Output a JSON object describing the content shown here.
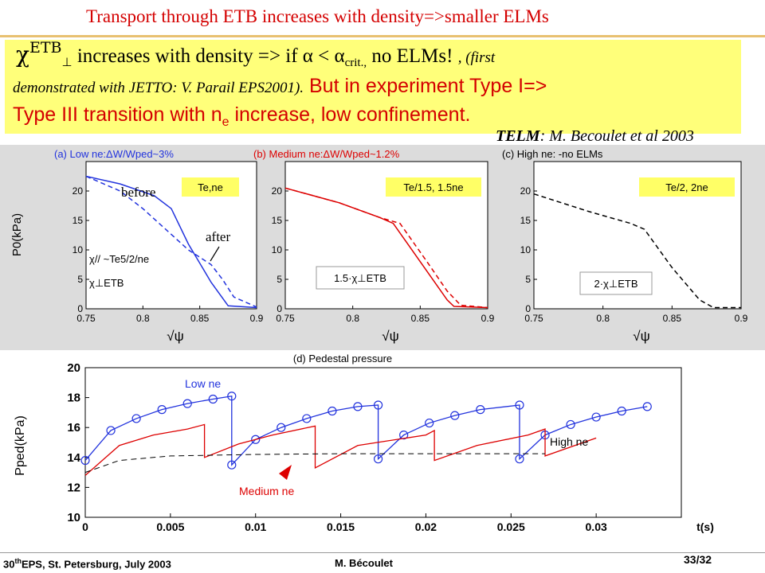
{
  "title": "Transport through ETB increases with density=>smaller ELMs",
  "callout": {
    "chi_symbol": "χ",
    "chi_sup": "ETB",
    "chi_sub": "⊥",
    "line1_text": " increases with density => if α < α",
    "alpha_sub": "crit.,",
    "line1_tail": " no ELMs! ",
    "line1_italic": ", (first",
    "line2_italic": "demonstrated with JETTO: V. Parail EPS2001).",
    "line2_red": " But in experiment Type I=>",
    "line3_a": "Type III transition with n",
    "line3_sub": "e",
    "line3_b": " increase, low confinement."
  },
  "reference": {
    "bold": "TELM",
    "rest": ": M. Becoulet et al 2003"
  },
  "panels": [
    {
      "title_main": "(a) Low n",
      "title_rest": "e:ΔW/W",
      "title_sub": "ped",
      "title_end": "~3%",
      "box_label": "Te,ne",
      "color": "#2233dd"
    },
    {
      "title_main": "(b) Medium n",
      "title_rest": "e:ΔW/W",
      "title_sub": "ped",
      "title_end": "~1.2%",
      "box_label": "Te/1.5, 1.5ne",
      "color": "#dd0000"
    },
    {
      "title_main": "(c) High n",
      "title_rest": "e: -no ELMs",
      "title_sub": "",
      "title_end": "",
      "box_label": "Te/2, 2ne",
      "color": "#000000"
    }
  ],
  "panel_annotations": {
    "before": "before",
    "after": "after",
    "chi_par": "χ// ~Te5/2/ne",
    "chi_perp_etb": "χ⊥ETB",
    "b_label": "1.5·χ⊥ETB",
    "c_label": "2·χ⊥ETB"
  },
  "upper_ylabel": "P0(kPa)",
  "upper_xlabel": "√ψ",
  "upper_xticks": [
    "0.75",
    "0.8",
    "0.85",
    "0.9"
  ],
  "upper_yticks": [
    "0",
    "5",
    "10",
    "15",
    "20"
  ],
  "lower": {
    "title": "(d) Pedestal pressure",
    "ylabel": "Pped(kPa)",
    "xlabel": "t(s)",
    "xticks": [
      "0",
      "0.005",
      "0.01",
      "0.015",
      "0.02",
      "0.025",
      "0.03"
    ],
    "yticks": [
      "10",
      "12",
      "14",
      "16",
      "18",
      "20"
    ],
    "low_label": "Low ne",
    "high_label": "High ne",
    "medium_label": "Medium ne"
  },
  "footer": {
    "left_a": "30",
    "left_sup": "th",
    "left_b": "EPS, St. Petersburg, July 2003",
    "author": "M. Bécoulet",
    "page": "33/32"
  },
  "chart_data": [
    {
      "type": "line",
      "title": "(a) Low ne:ΔW/Wped~3%",
      "xlabel": "√ψ",
      "ylabel": "P0(kPa)",
      "xlim": [
        0.75,
        0.9
      ],
      "ylim": [
        0,
        25
      ],
      "series": [
        {
          "name": "before",
          "x": [
            0.75,
            0.78,
            0.81,
            0.825,
            0.84,
            0.86,
            0.875,
            0.9
          ],
          "y": [
            22.5,
            21.2,
            19.2,
            17.0,
            11.0,
            4.5,
            0.5,
            0.2
          ]
        },
        {
          "name": "after",
          "x": [
            0.75,
            0.78,
            0.8,
            0.82,
            0.84,
            0.86,
            0.87,
            0.88,
            0.9
          ],
          "y": [
            22.5,
            20.0,
            17.0,
            13.5,
            10.0,
            7.5,
            5.0,
            2.0,
            0.3
          ]
        }
      ]
    },
    {
      "type": "line",
      "title": "(b) Medium ne:ΔW/Wped~1.2%",
      "xlabel": "√ψ",
      "ylabel": "P0(kPa)",
      "xlim": [
        0.75,
        0.9
      ],
      "ylim": [
        0,
        25
      ],
      "series": [
        {
          "x": [
            0.75,
            0.79,
            0.82,
            0.83,
            0.85,
            0.87,
            0.875,
            0.9
          ],
          "y": [
            20.5,
            18.0,
            15.5,
            14.5,
            8.0,
            1.5,
            0.4,
            0.2
          ]
        },
        {
          "x": [
            0.75,
            0.79,
            0.82,
            0.835,
            0.855,
            0.87,
            0.88,
            0.9
          ],
          "y": [
            20.5,
            18.0,
            15.5,
            14.5,
            8.0,
            3.0,
            0.6,
            0.2
          ]
        }
      ]
    },
    {
      "type": "line",
      "title": "(c) High ne: -no ELMs",
      "xlabel": "√ψ",
      "ylabel": "P0(kPa)",
      "xlim": [
        0.75,
        0.9
      ],
      "ylim": [
        0,
        25
      ],
      "series": [
        {
          "x": [
            0.75,
            0.79,
            0.82,
            0.83,
            0.85,
            0.87,
            0.88,
            0.9
          ],
          "y": [
            19.5,
            16.5,
            14.5,
            13.5,
            7.0,
            1.5,
            0.2,
            0.2
          ]
        }
      ]
    },
    {
      "type": "line",
      "title": "(d) Pedestal pressure",
      "xlabel": "t(s)",
      "ylabel": "Pped(kPa)",
      "xlim": [
        0,
        0.035
      ],
      "ylim": [
        10,
        20
      ],
      "series": [
        {
          "name": "Low ne",
          "x": [
            0,
            0.0015,
            0.003,
            0.0045,
            0.006,
            0.0075,
            0.0086,
            0.0086,
            0.01,
            0.0115,
            0.013,
            0.0145,
            0.016,
            0.0172,
            0.0172,
            0.0187,
            0.0202,
            0.0217,
            0.0232,
            0.0255,
            0.0255,
            0.027,
            0.0285,
            0.03,
            0.0315,
            0.033
          ],
          "y": [
            13.8,
            15.8,
            16.6,
            17.2,
            17.6,
            17.9,
            18.1,
            13.5,
            15.2,
            16.0,
            16.6,
            17.1,
            17.4,
            17.5,
            13.9,
            15.5,
            16.3,
            16.8,
            17.2,
            17.5,
            13.9,
            15.5,
            16.2,
            16.7,
            17.1,
            17.4
          ]
        },
        {
          "name": "Medium ne",
          "x": [
            0,
            0.002,
            0.004,
            0.006,
            0.007,
            0.007,
            0.009,
            0.011,
            0.0135,
            0.0135,
            0.016,
            0.02,
            0.0205,
            0.0205,
            0.023,
            0.026,
            0.027,
            0.027,
            0.03
          ],
          "y": [
            12.8,
            14.8,
            15.5,
            15.9,
            16.2,
            14.0,
            14.9,
            15.5,
            16.1,
            13.3,
            14.8,
            15.5,
            15.8,
            13.8,
            14.8,
            15.5,
            15.9,
            14.1,
            15.3
          ]
        },
        {
          "name": "High ne",
          "x": [
            0,
            0.002,
            0.005,
            0.01,
            0.015,
            0.02,
            0.027
          ],
          "y": [
            13.0,
            13.8,
            14.1,
            14.2,
            14.25,
            14.25,
            14.25
          ]
        }
      ]
    }
  ]
}
